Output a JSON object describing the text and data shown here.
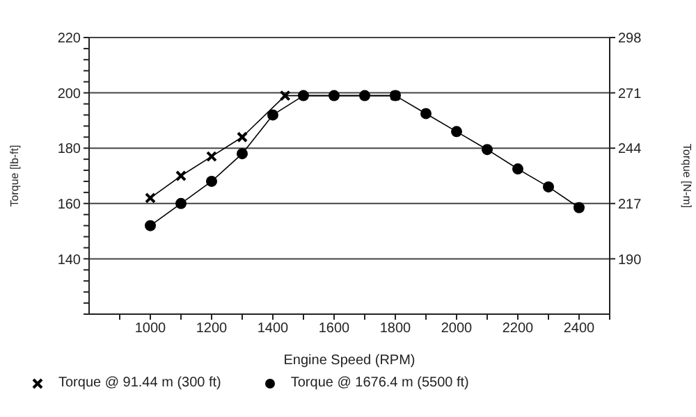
{
  "chart_data": {
    "type": "line",
    "xlabel": "Engine Speed (RPM)",
    "ylabel": "Torque [lb-ft]",
    "y2label": "Torque [N-m]",
    "xlim": [
      800,
      2500
    ],
    "xticks": [
      {
        "value": 900,
        "label": null
      },
      1000,
      {
        "value": 1100,
        "label": null
      },
      1200,
      {
        "value": 1300,
        "label": null
      },
      1400,
      {
        "value": 1500,
        "label": null
      },
      1600,
      {
        "value": 1700,
        "label": null
      },
      1800,
      {
        "value": 1900,
        "label": null
      },
      2000,
      {
        "value": 2100,
        "label": null
      },
      2200,
      {
        "value": 2300,
        "label": null
      },
      2400,
      {
        "value": 2500,
        "label": null
      }
    ],
    "ylim": [
      120,
      220
    ],
    "yticks": [
      {
        "value": 120,
        "label": null
      },
      {
        "value": 124,
        "label": null
      },
      {
        "value": 128,
        "label": null
      },
      {
        "value": 132,
        "label": null
      },
      {
        "value": 136,
        "label": null
      },
      140,
      {
        "value": 144,
        "label": null
      },
      {
        "value": 148,
        "label": null
      },
      {
        "value": 152,
        "label": null
      },
      {
        "value": 156,
        "label": null
      },
      160,
      {
        "value": 164,
        "label": null
      },
      {
        "value": 168,
        "label": null
      },
      {
        "value": 172,
        "label": null
      },
      {
        "value": 176,
        "label": null
      },
      180,
      {
        "value": 184,
        "label": null
      },
      {
        "value": 188,
        "label": null
      },
      {
        "value": 192,
        "label": null
      },
      {
        "value": 196,
        "label": null
      },
      200,
      {
        "value": 204,
        "label": null
      },
      {
        "value": 208,
        "label": null
      },
      {
        "value": 212,
        "label": null
      },
      {
        "value": 216,
        "label": null
      },
      220
    ],
    "y2lim": [
      163,
      298
    ],
    "y2ticks": [
      190,
      217,
      244,
      271,
      298
    ],
    "grid": "y",
    "legend": "bottom",
    "series": [
      {
        "name": "Torque @ 91.44 m (300 ft)",
        "color": "#000000",
        "marker": "cross",
        "x": [
          1000,
          1100,
          1200,
          1300,
          1440,
          1800
        ],
        "values": [
          162,
          170,
          177,
          184,
          199,
          199
        ]
      },
      {
        "name": "Torque @ 1676.4 m (5500 ft)",
        "color": "#000000",
        "marker": "circle",
        "x": [
          1000,
          1100,
          1200,
          1300,
          1400,
          1500,
          1600,
          1700,
          1800,
          1900,
          2000,
          2100,
          2200,
          2300,
          2400
        ],
        "values": [
          152,
          160,
          168,
          178,
          192,
          199,
          199,
          199,
          199,
          192.5,
          186,
          179.5,
          172.5,
          166,
          158.5
        ]
      }
    ]
  }
}
